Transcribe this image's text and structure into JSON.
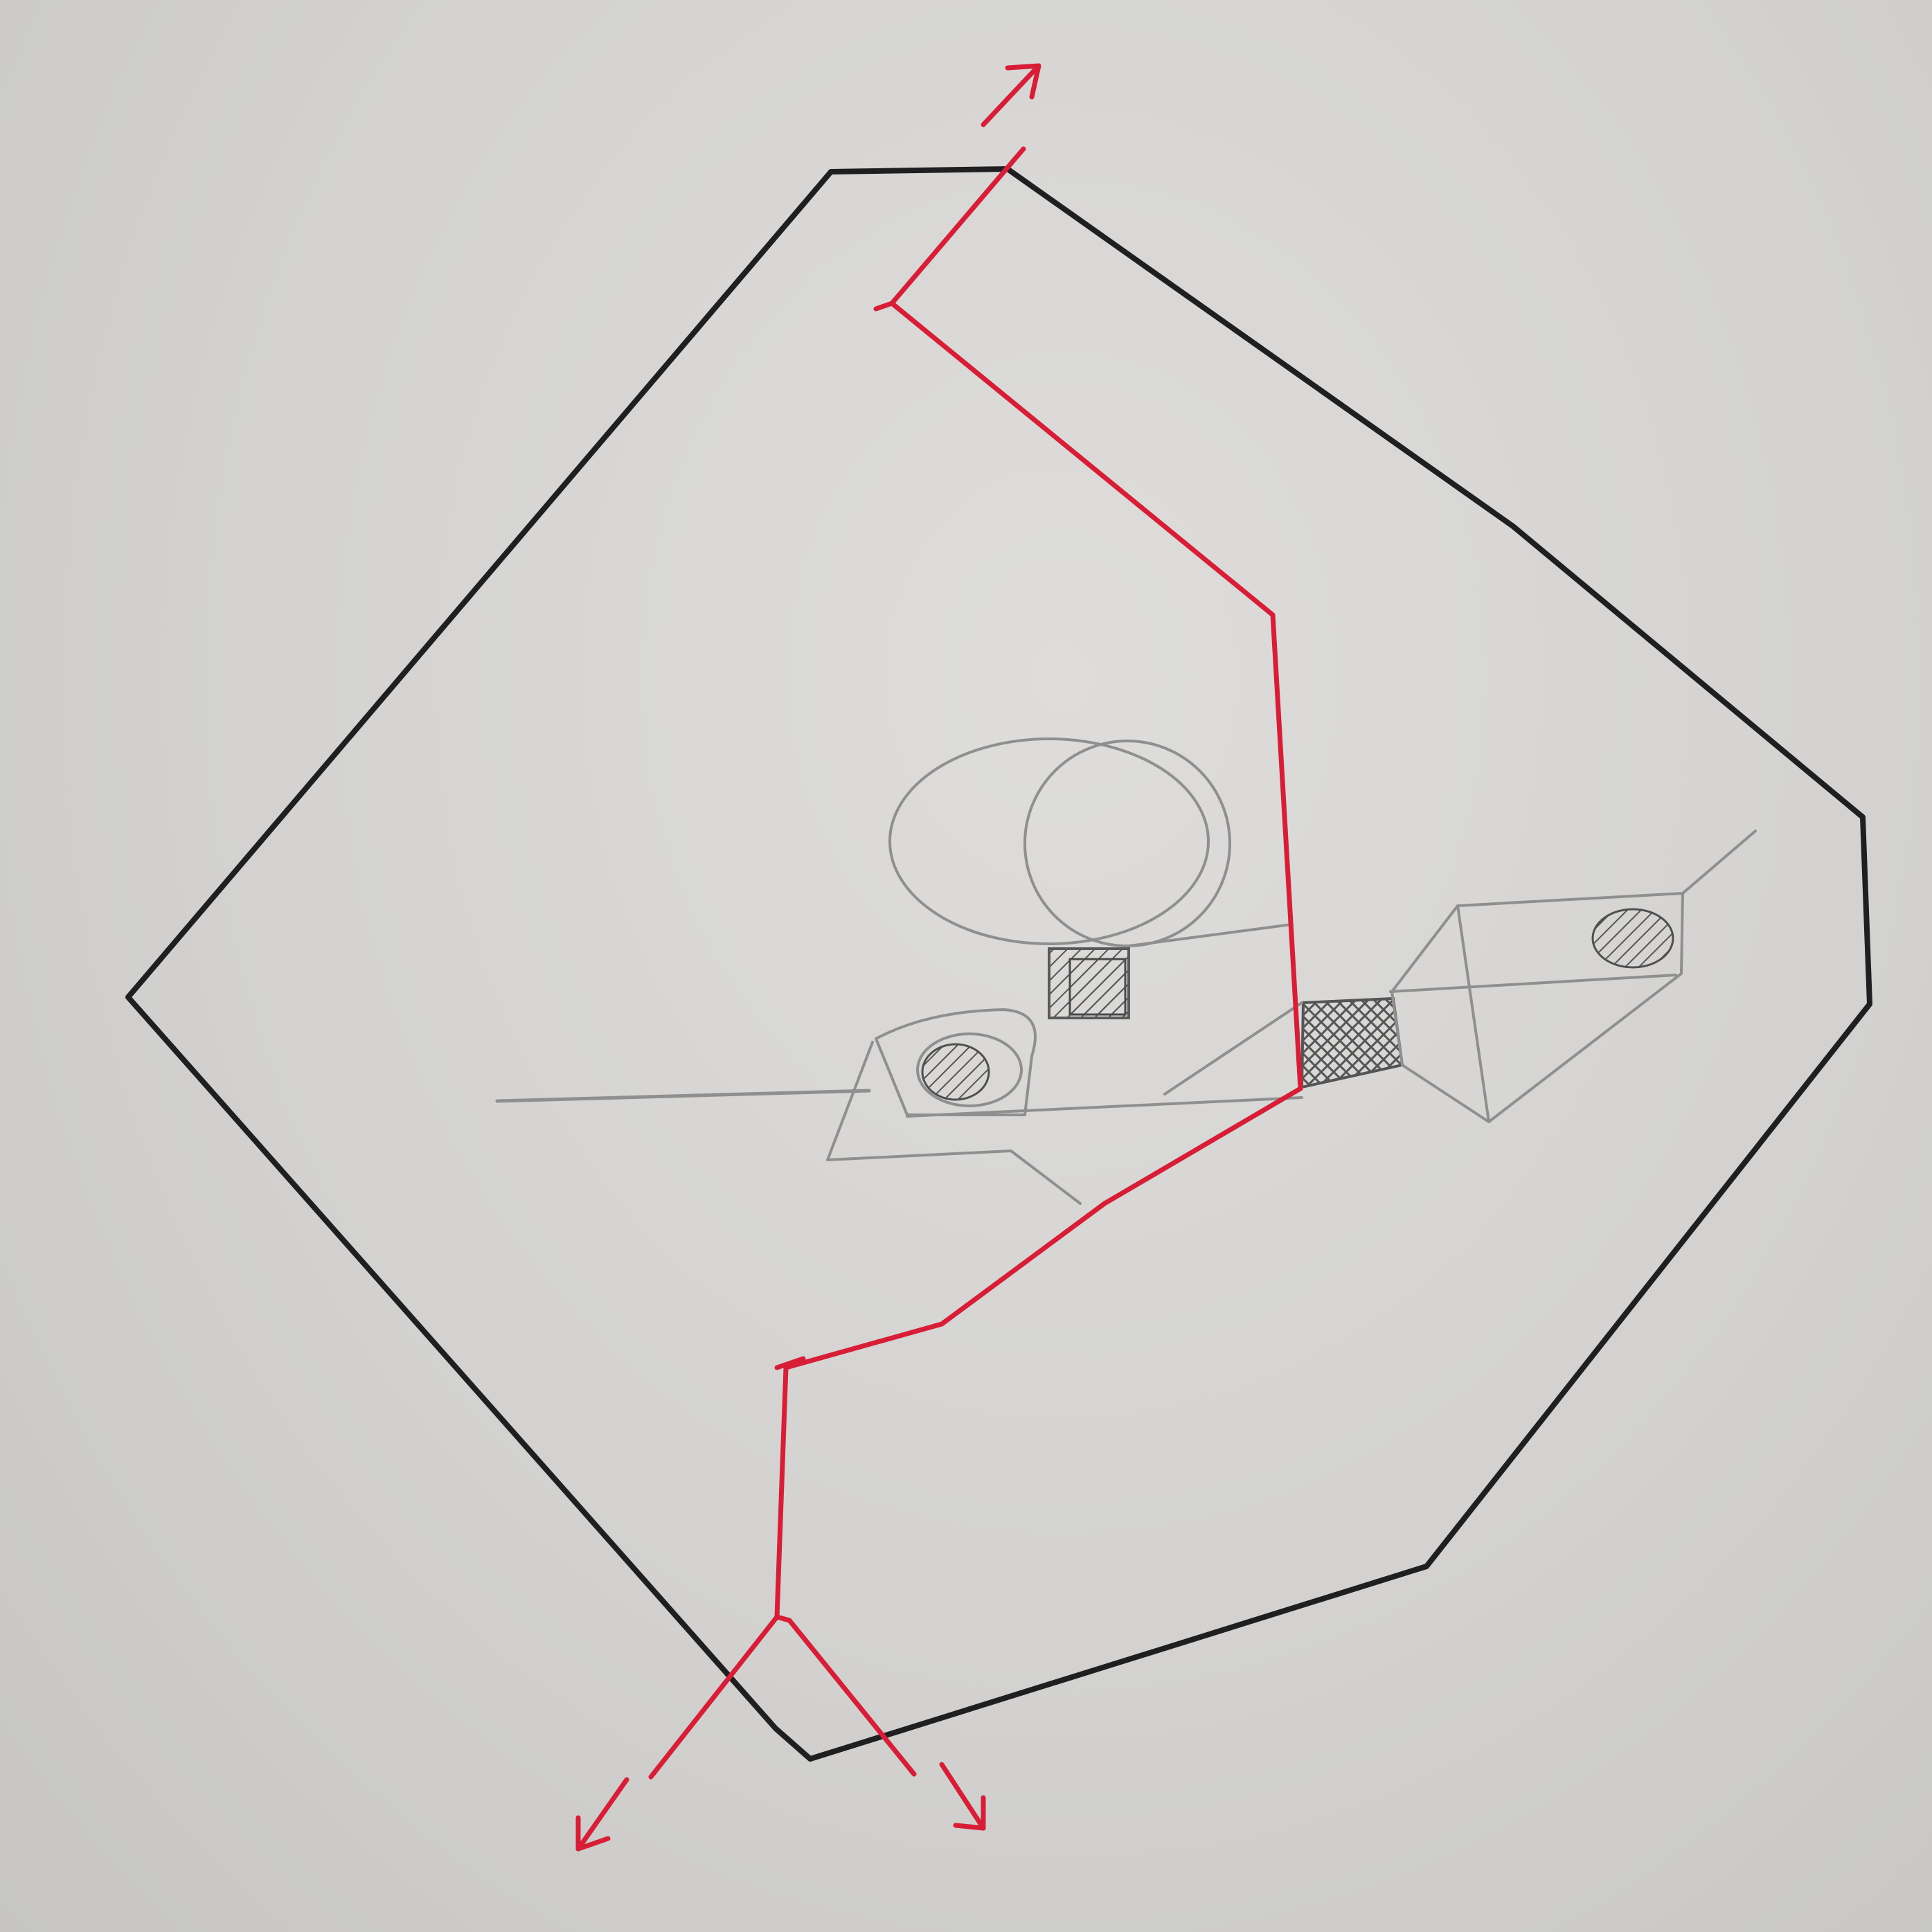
{
  "colors": {
    "paper": "#d8d7d5",
    "outline": "#1f1f21",
    "pencil": "#8f8f8f",
    "red": "#d81e37",
    "hatch": "#555555"
  },
  "annotations": [],
  "elements": {
    "boundary": "polygon-outline",
    "path": "red-branching-path",
    "arrows": [
      "arrow-up",
      "arrow-down-left",
      "arrow-down-right"
    ],
    "sketch": [
      "ellipse-cylinder",
      "small-hatched-square",
      "left-wedge-mount",
      "right-prism-block",
      "cross-hatched-band",
      "hatched-ellipses",
      "thin-rod-left",
      "thin-rod-right"
    ]
  }
}
